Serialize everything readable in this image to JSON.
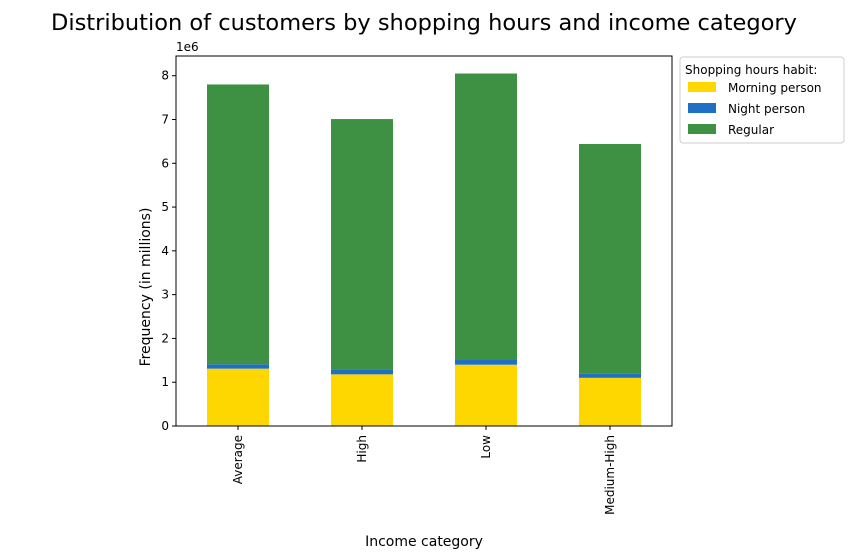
{
  "chart_data": {
    "type": "bar",
    "stacked": true,
    "title": "Distribution of customers by shopping hours and income category",
    "xlabel": "Income category",
    "ylabel": "Frequency (in millions)",
    "offset_label": "1e6",
    "categories": [
      "Average",
      "High",
      "Low",
      "Medium-High"
    ],
    "ylim": [
      0,
      8.45
    ],
    "yticks": [
      "0",
      "1",
      "2",
      "3",
      "4",
      "5",
      "6",
      "7",
      "8"
    ],
    "series": [
      {
        "name": "Morning person",
        "color": "#FFD700",
        "values": [
          1.31,
          1.18,
          1.4,
          1.1
        ]
      },
      {
        "name": "Night person",
        "color": "#1F6FC5",
        "values": [
          0.1,
          0.1,
          0.12,
          0.09
        ]
      },
      {
        "name": "Regular",
        "color": "#3E9142",
        "values": [
          6.39,
          5.73,
          6.53,
          5.25
        ]
      }
    ],
    "legend": {
      "title": "Shopping hours habit:",
      "placement": "outside-top-right"
    },
    "grid": false
  }
}
